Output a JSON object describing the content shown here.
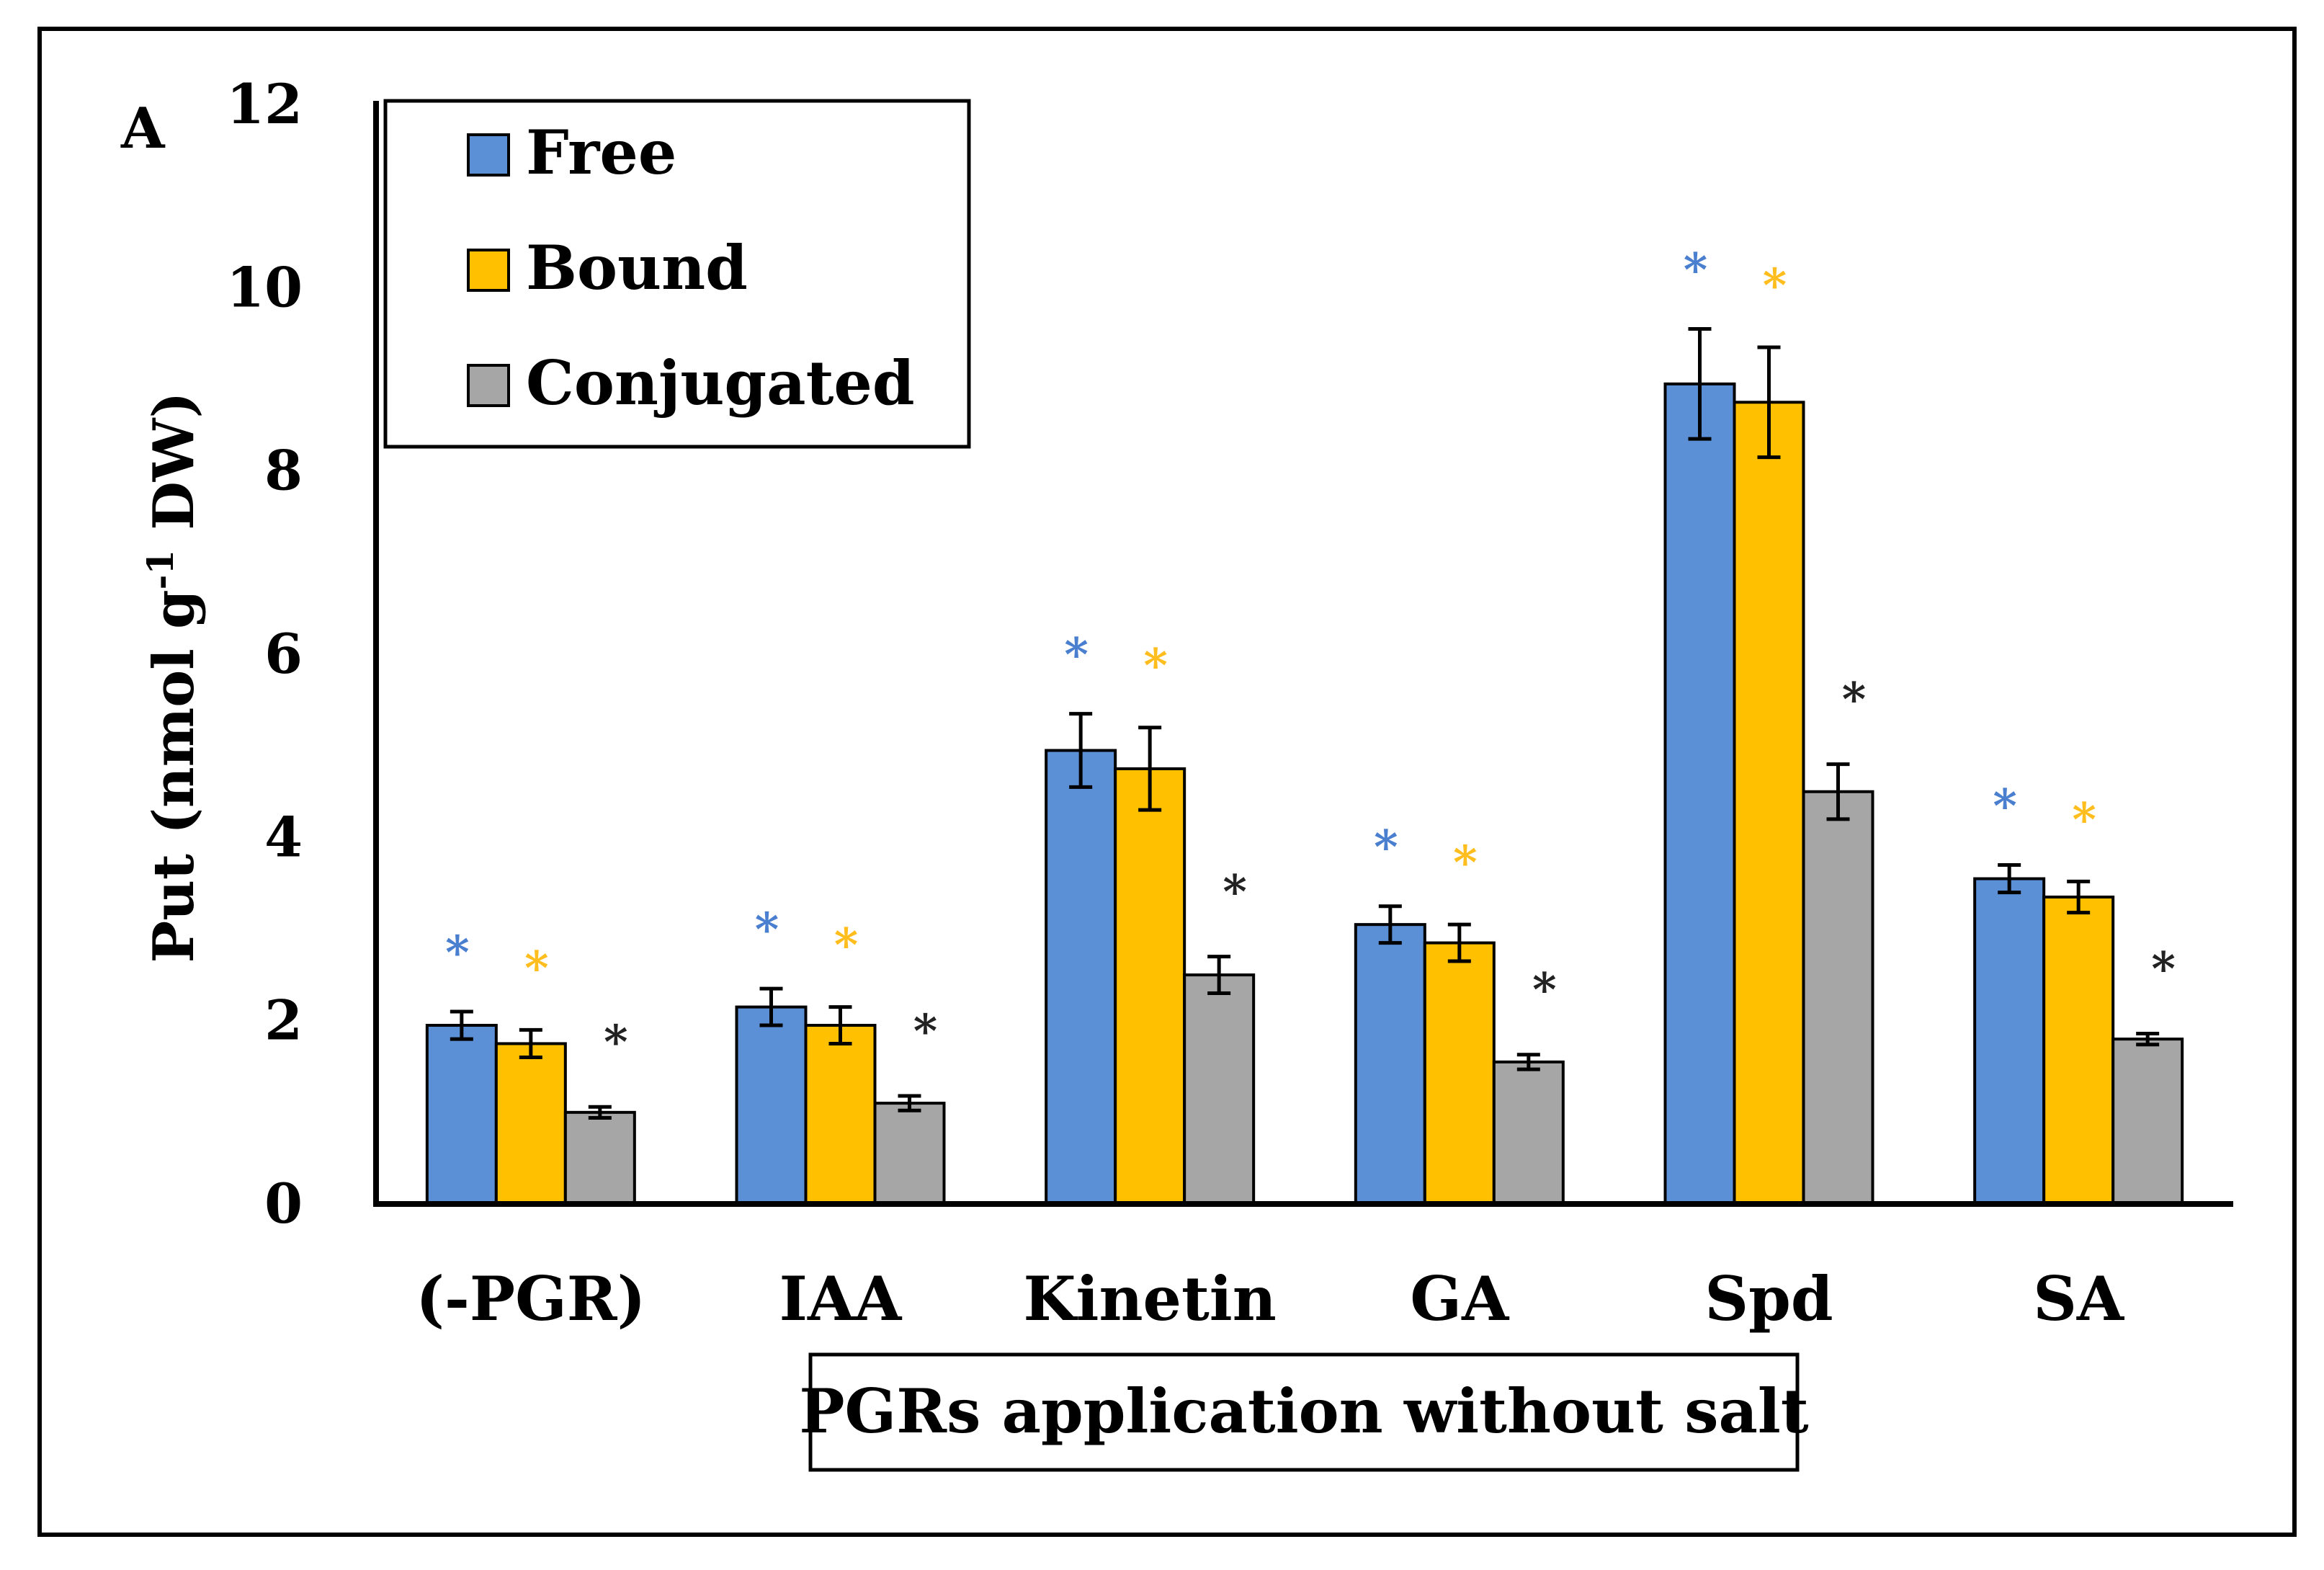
{
  "chart_data": {
    "type": "bar",
    "panel_label": "A",
    "title": "",
    "xlabel": "PGRs application without salt",
    "ylabel_main": "Put (nmol g",
    "ylabel_sup": "-1",
    "ylabel_tail": " DW)",
    "ylim": [
      0,
      12
    ],
    "yticks": [
      "0",
      "2",
      "4",
      "6",
      "8",
      "10",
      "12"
    ],
    "categories": [
      "(-PGR)",
      "IAA",
      "Kinetin",
      "GA",
      "Spd",
      "SA"
    ],
    "legend_position": "top-left",
    "significance_marker": "*",
    "series": [
      {
        "name": "Free",
        "color": "#5b8fd6",
        "star_color": "#4a7fd0",
        "values": [
          1.95,
          2.15,
          4.95,
          3.05,
          8.95,
          3.55
        ],
        "errors": [
          0.15,
          0.2,
          0.4,
          0.2,
          0.6,
          0.15
        ]
      },
      {
        "name": "Bound",
        "color": "#ffc000",
        "star_color": "#ffbe1e",
        "values": [
          1.75,
          1.95,
          4.75,
          2.85,
          8.75,
          3.35
        ],
        "errors": [
          0.15,
          0.2,
          0.45,
          0.2,
          0.6,
          0.17
        ]
      },
      {
        "name": "Conjugated",
        "color": "#a6a6a6",
        "star_color": "#222222",
        "values": [
          1.0,
          1.1,
          2.5,
          1.55,
          4.5,
          1.8
        ],
        "errors": [
          0.06,
          0.08,
          0.2,
          0.08,
          0.3,
          0.06
        ]
      }
    ]
  }
}
